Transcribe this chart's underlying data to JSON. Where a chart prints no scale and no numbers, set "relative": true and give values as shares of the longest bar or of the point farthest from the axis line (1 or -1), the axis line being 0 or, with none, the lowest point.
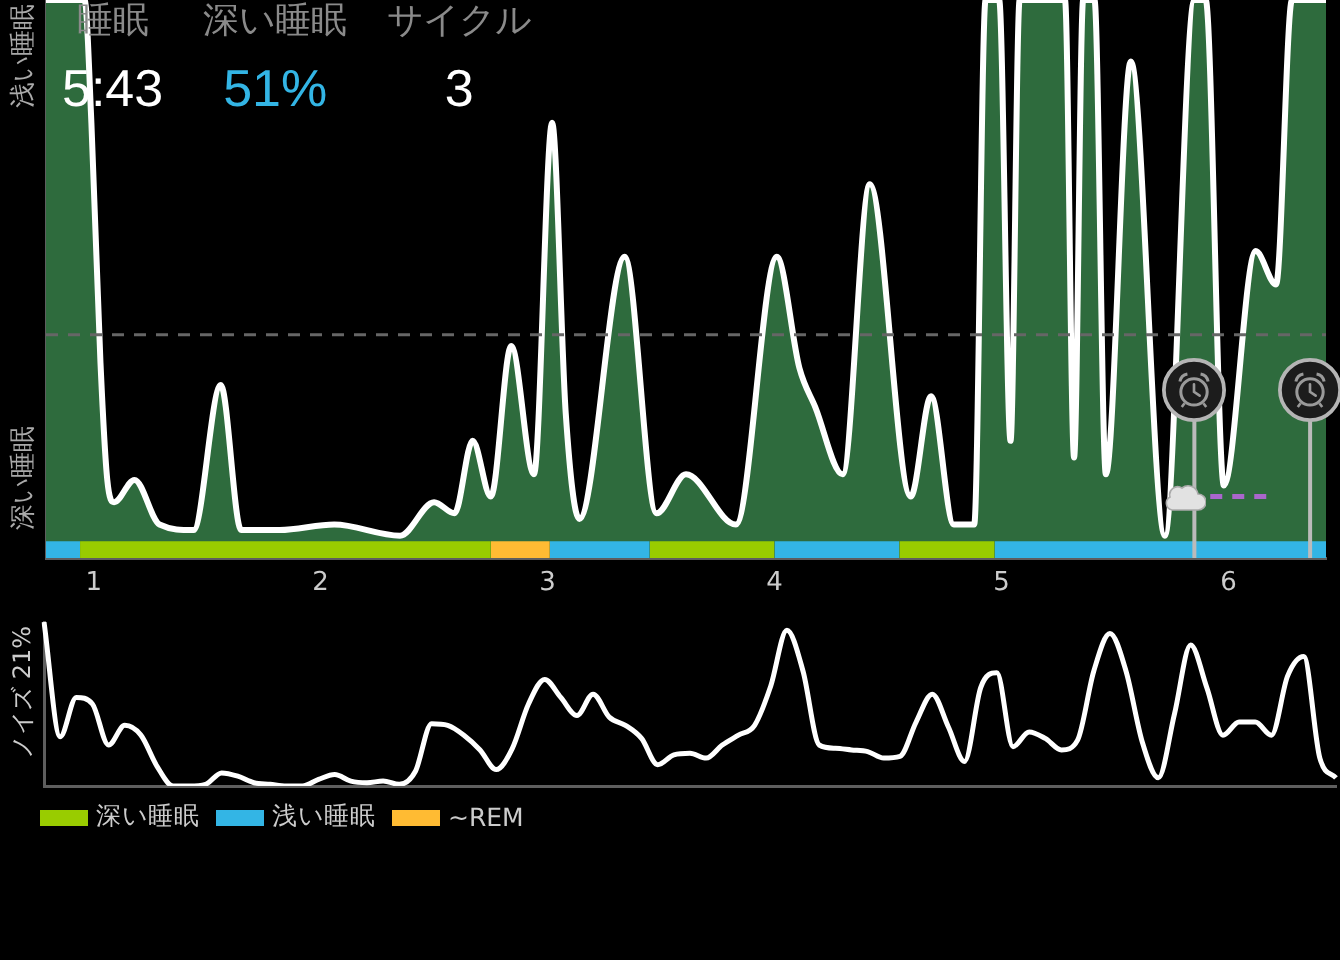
{
  "chart_data": [
    {
      "type": "other",
      "categories": [
        "睡眠",
        "深い睡眠",
        "サイクル"
      ],
      "value_labels": [
        "5:43",
        "51%",
        "3"
      ],
      "colors": [
        "#ffffff",
        "#33b5e5",
        "#ffffff"
      ]
    },
    {
      "type": "area",
      "relative": true,
      "marker": "none",
      "grid": false,
      "legend": "bottom left",
      "x": [
        0.79,
        0.96,
        0.99,
        1.03,
        1.06,
        1.09,
        1.18,
        1.29,
        1.44,
        1.56,
        1.65,
        1.82,
        2.06,
        2.35,
        2.5,
        2.59,
        2.67,
        2.75,
        2.84,
        2.94,
        3.02,
        3.08,
        3.14,
        3.34,
        3.48,
        3.61,
        3.83,
        4.01,
        4.11,
        4.18,
        4.3,
        4.42,
        4.6,
        4.69,
        4.79,
        4.88,
        4.93,
        4.99,
        5.04,
        5.08,
        5.28,
        5.32,
        5.36,
        5.41,
        5.46,
        5.57,
        5.72,
        5.85,
        5.9,
        5.98,
        6.12,
        6.21,
        6.28,
        6.43
      ],
      "series": [
        {
          "color": "#2e6b3d",
          "values": [
            1,
            1,
            0.78,
            0.35,
            0.14,
            0.1,
            0.14,
            0.06,
            0.05,
            0.31,
            0.05,
            0.05,
            0.06,
            0.04,
            0.1,
            0.08,
            0.21,
            0.11,
            0.38,
            0.15,
            0.78,
            0.26,
            0.07,
            0.54,
            0.08,
            0.15,
            0.06,
            0.54,
            0.34,
            0.27,
            0.15,
            0.67,
            0.11,
            0.29,
            0.06,
            0.06,
            1,
            1,
            0.21,
            1,
            1,
            0.18,
            1,
            1,
            0.15,
            0.89,
            0.04,
            1,
            1,
            0.13,
            0.55,
            0.49,
            1,
            1
          ]
        },
        {
          "name": "深い睡眠",
          "color": "#99cc00",
          "x": [
            0.94,
            2.75,
            3.1,
            3.45,
            4.0,
            4.27,
            4.55,
            4.97
          ],
          "values": [
            0.03,
            0.03,
            null,
            0.03,
            0.03,
            null,
            0.03,
            0.03
          ]
        },
        {
          "name": "浅い睡眠",
          "color": "#33b5e5",
          "x": [
            0.79,
            0.94,
            2.0,
            3.01,
            3.45,
            3.7,
            4.0,
            4.55,
            4.76,
            4.97,
            6.43
          ],
          "values": [
            0.03,
            0.03,
            null,
            0.03,
            0.03,
            null,
            0.03,
            0.03,
            null,
            0.03,
            0.03
          ]
        },
        {
          "name": "~REM",
          "color": "#ffbb33",
          "x": [
            2.75,
            3.01
          ],
          "values": [
            0.03,
            0.03
          ]
        },
        {
          "type": "line",
          "color": "#aa66cc",
          "line_style": "dashed",
          "x": [
            5.92,
            6.18
          ],
          "values": [
            0.11,
            0.11
          ]
        }
      ],
      "xlim": [
        0.79,
        6.43
      ],
      "xticks": [
        1,
        2,
        3,
        4,
        5,
        6
      ],
      "ref_lines": [
        {
          "axis": "y",
          "value": 0.4,
          "color": "#666666",
          "line_style": "dashed"
        },
        {
          "axis": "x",
          "value": 5.85,
          "color": "#bbbbbb"
        },
        {
          "axis": "x",
          "value": 6.36,
          "color": "#bbbbbb"
        }
      ],
      "annotations": [
        "浅い睡眠",
        "深い睡眠"
      ]
    },
    {
      "type": "line",
      "relative": true,
      "marker": "none",
      "grid": false,
      "tick_labels": false,
      "ylabel": "ノイズ 21%",
      "categories": [
        null,
        null,
        null,
        null,
        null,
        null,
        null,
        null,
        null,
        null,
        null,
        null,
        null,
        null,
        null,
        null,
        null,
        null,
        null,
        null,
        null,
        null,
        null,
        null,
        null,
        null,
        null,
        null,
        null,
        null,
        null,
        null,
        null,
        null,
        null,
        null,
        null,
        null,
        null,
        null,
        null,
        null,
        null,
        null,
        null,
        null,
        null,
        null,
        null,
        null,
        null,
        null,
        null,
        null,
        null,
        null,
        null,
        null,
        null,
        null,
        null,
        null,
        null,
        null,
        null,
        null,
        null,
        null,
        null,
        null,
        null,
        null,
        null,
        null,
        null,
        null,
        null,
        null,
        null,
        null,
        null
      ],
      "series": [
        {
          "color": "#ffffff",
          "values": [
            1,
            0.3,
            0.54,
            0.5,
            0.25,
            0.37,
            0.31,
            0.12,
            0,
            0,
            0.01,
            0.08,
            0.06,
            0.02,
            0.01,
            0,
            0,
            0.04,
            0.07,
            0.03,
            0.02,
            0.03,
            0.01,
            0.09,
            0.38,
            0.37,
            0.31,
            0.22,
            0.1,
            0.23,
            0.5,
            0.65,
            0.54,
            0.43,
            0.56,
            0.42,
            0.37,
            0.29,
            0.13,
            0.19,
            0.2,
            0.17,
            0.25,
            0.31,
            0.37,
            0.61,
            0.95,
            0.7,
            0.25,
            0.23,
            0.22,
            0.21,
            0.17,
            0.18,
            0.39,
            0.56,
            0.36,
            0.15,
            0.6,
            0.69,
            0.24,
            0.33,
            0.29,
            0.22,
            0.28,
            0.7,
            0.93,
            0.7,
            0.27,
            0.05,
            0.44,
            0.86,
            0.6,
            0.31,
            0.39,
            0.39,
            0.31,
            0.67,
            0.79,
            0.17,
            0.05
          ]
        }
      ]
    }
  ]
}
